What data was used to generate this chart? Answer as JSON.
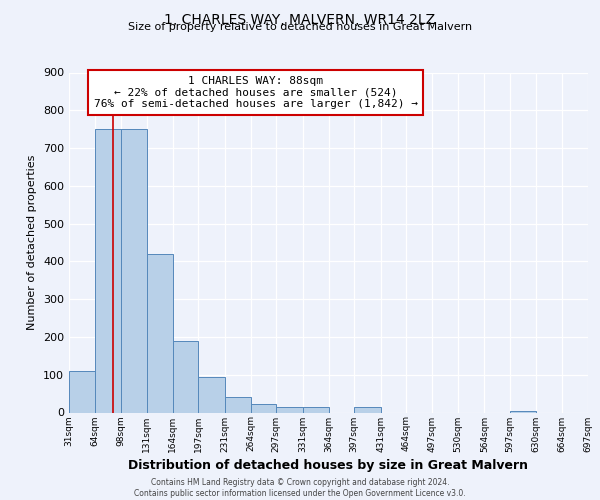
{
  "title": "1, CHARLES WAY, MALVERN, WR14 2LZ",
  "subtitle": "Size of property relative to detached houses in Great Malvern",
  "xlabel": "Distribution of detached houses by size in Great Malvern",
  "ylabel": "Number of detached properties",
  "bar_color": "#b8d0e8",
  "bar_edge_color": "#5588bb",
  "bin_edges": [
    31,
    64,
    98,
    131,
    164,
    197,
    231,
    264,
    297,
    331,
    364,
    397,
    431,
    464,
    497,
    530,
    564,
    597,
    630,
    664,
    697
  ],
  "bar_heights": [
    110,
    750,
    750,
    420,
    190,
    93,
    40,
    22,
    15,
    15,
    0,
    15,
    0,
    0,
    0,
    0,
    0,
    5,
    0,
    0
  ],
  "property_size": 88,
  "red_line_color": "#cc0000",
  "ylim": [
    0,
    900
  ],
  "yticks": [
    0,
    100,
    200,
    300,
    400,
    500,
    600,
    700,
    800,
    900
  ],
  "annotation_text": "1 CHARLES WAY: 88sqm\n← 22% of detached houses are smaller (524)\n76% of semi-detached houses are larger (1,842) →",
  "annotation_box_color": "#ffffff",
  "annotation_box_edge_color": "#cc0000",
  "footer_text": "Contains HM Land Registry data © Crown copyright and database right 2024.\nContains public sector information licensed under the Open Government Licence v3.0.",
  "bg_color": "#eef2fb",
  "grid_color": "#ffffff",
  "tick_labels": [
    "31sqm",
    "64sqm",
    "98sqm",
    "131sqm",
    "164sqm",
    "197sqm",
    "231sqm",
    "264sqm",
    "297sqm",
    "331sqm",
    "364sqm",
    "397sqm",
    "431sqm",
    "464sqm",
    "497sqm",
    "530sqm",
    "564sqm",
    "597sqm",
    "630sqm",
    "664sqm",
    "697sqm"
  ]
}
